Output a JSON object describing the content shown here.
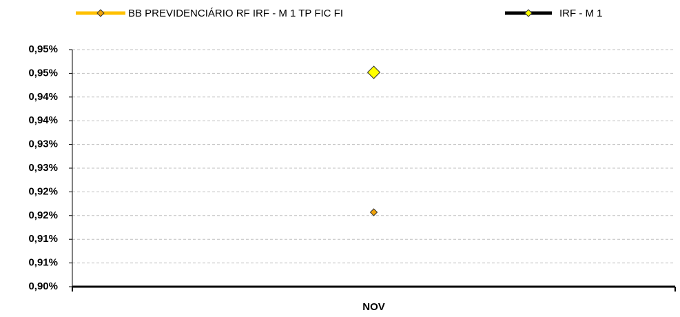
{
  "chart_data": {
    "type": "line",
    "categories": [
      "NOV"
    ],
    "series": [
      {
        "name": "BB PREVIDENCIÁRIO RF IRF - M 1 TP FIC FI",
        "color": "#ffc000",
        "marker_color": "#f0a30a",
        "values": [
          0.9157
        ]
      },
      {
        "name": "IRF - M 1",
        "color": "#000000",
        "marker_color": "#ffff00",
        "values": [
          0.9452
        ]
      }
    ],
    "ylim": [
      0.9,
      0.95
    ],
    "yticks": [
      {
        "value": 0.9,
        "label": "0,90%"
      },
      {
        "value": 0.905,
        "label": "0,91%"
      },
      {
        "value": 0.91,
        "label": "0,91%"
      },
      {
        "value": 0.915,
        "label": "0,92%"
      },
      {
        "value": 0.92,
        "label": "0,92%"
      },
      {
        "value": 0.925,
        "label": "0,93%"
      },
      {
        "value": 0.93,
        "label": "0,93%"
      },
      {
        "value": 0.935,
        "label": "0,94%"
      },
      {
        "value": 0.94,
        "label": "0,94%"
      },
      {
        "value": 0.945,
        "label": "0,95%"
      },
      {
        "value": 0.95,
        "label": "0,95%"
      }
    ],
    "grid": true
  }
}
